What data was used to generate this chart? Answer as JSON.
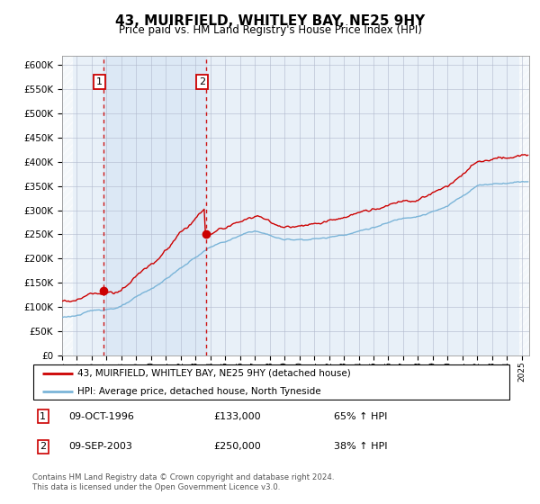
{
  "title": "43, MUIRFIELD, WHITLEY BAY, NE25 9HY",
  "subtitle": "Price paid vs. HM Land Registry's House Price Index (HPI)",
  "legend_line1": "43, MUIRFIELD, WHITLEY BAY, NE25 9HY (detached house)",
  "legend_line2": "HPI: Average price, detached house, North Tyneside",
  "sale1_date": "09-OCT-1996",
  "sale1_price": 133000,
  "sale1_hpi": "65% ↑ HPI",
  "sale1_year": 1996.78,
  "sale2_date": "09-SEP-2003",
  "sale2_price": 250000,
  "sale2_hpi": "38% ↑ HPI",
  "sale2_year": 2003.69,
  "ylim_max": 620000,
  "xlim_start": 1994.0,
  "xlim_end": 2025.5,
  "hpi_color": "#7ab4d8",
  "property_color": "#cc0000",
  "background_color": "#ffffff",
  "plot_bg_color": "#e8f0f8",
  "shade_color": "#dce8f5",
  "grid_color": "#b0b8cc",
  "hatch_color": "#c0c8d0",
  "footer": "Contains HM Land Registry data © Crown copyright and database right 2024.\nThis data is licensed under the Open Government Licence v3.0."
}
